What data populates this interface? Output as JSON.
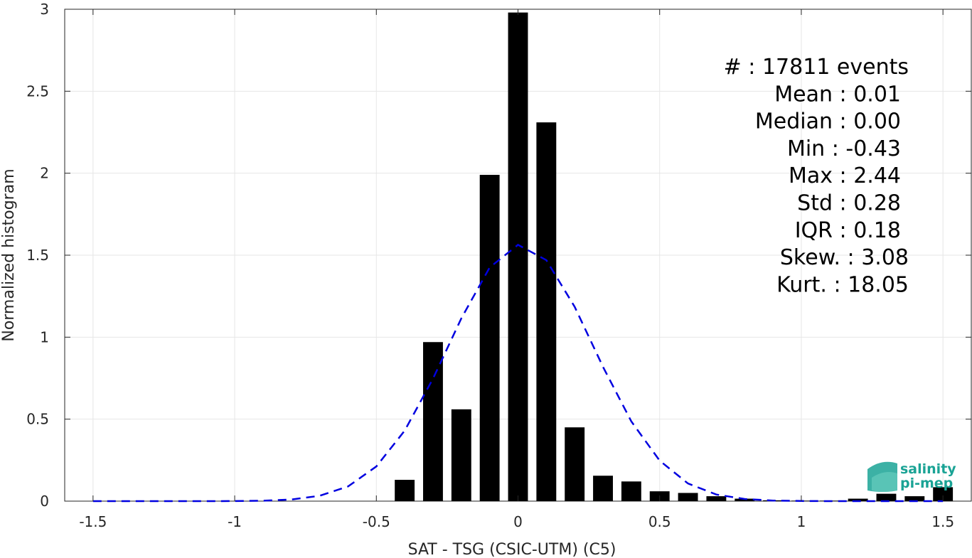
{
  "chart_data": {
    "type": "bar",
    "xlabel": "SAT - TSG (CSIC-UTM) (C5)",
    "ylabel": "Normalized histogram",
    "xlim": [
      -1.6,
      1.6
    ],
    "ylim": [
      0,
      3
    ],
    "xticks": [
      "-1.5",
      "-1",
      "-0.5",
      "0",
      "0.5",
      "1",
      "1.5"
    ],
    "yticks": [
      "0",
      "0.5",
      "1",
      "1.5",
      "2",
      "2.5",
      "3"
    ],
    "grid": true,
    "bar_width": 0.07,
    "bar_color": "#000000",
    "bars": [
      {
        "x": -0.4,
        "y": 0.13
      },
      {
        "x": -0.3,
        "y": 0.97
      },
      {
        "x": -0.2,
        "y": 0.56
      },
      {
        "x": -0.1,
        "y": 1.99
      },
      {
        "x": 0.0,
        "y": 2.98
      },
      {
        "x": 0.1,
        "y": 2.31
      },
      {
        "x": 0.2,
        "y": 0.45
      },
      {
        "x": 0.3,
        "y": 0.155
      },
      {
        "x": 0.4,
        "y": 0.12
      },
      {
        "x": 0.5,
        "y": 0.06
      },
      {
        "x": 0.6,
        "y": 0.05
      },
      {
        "x": 0.7,
        "y": 0.03
      },
      {
        "x": 0.8,
        "y": 0.015
      },
      {
        "x": 0.9,
        "y": 0.005
      },
      {
        "x": 1.0,
        "y": 0.003
      },
      {
        "x": 1.1,
        "y": 0.003
      },
      {
        "x": 1.2,
        "y": 0.015
      },
      {
        "x": 1.3,
        "y": 0.045
      },
      {
        "x": 1.4,
        "y": 0.03
      },
      {
        "x": 1.5,
        "y": 0.085
      }
    ],
    "fit_curve": {
      "style": "dashed",
      "color": "#0000e0",
      "mean": 0.01,
      "std": 0.255,
      "x_range": [
        -1.5,
        1.5
      ],
      "step": 0.1
    },
    "stats": [
      "#  : 17811 events",
      "Mean : 0.01",
      "Median : 0.00",
      "Min : -0.43",
      "Max : 2.44",
      "Std : 0.28",
      "IQR : 0.18",
      "Skew. : 3.08",
      "Kurt. : 18.05"
    ]
  },
  "logo": {
    "line1": "salinity",
    "line2": "pi-mep",
    "color": "#1aa395"
  }
}
